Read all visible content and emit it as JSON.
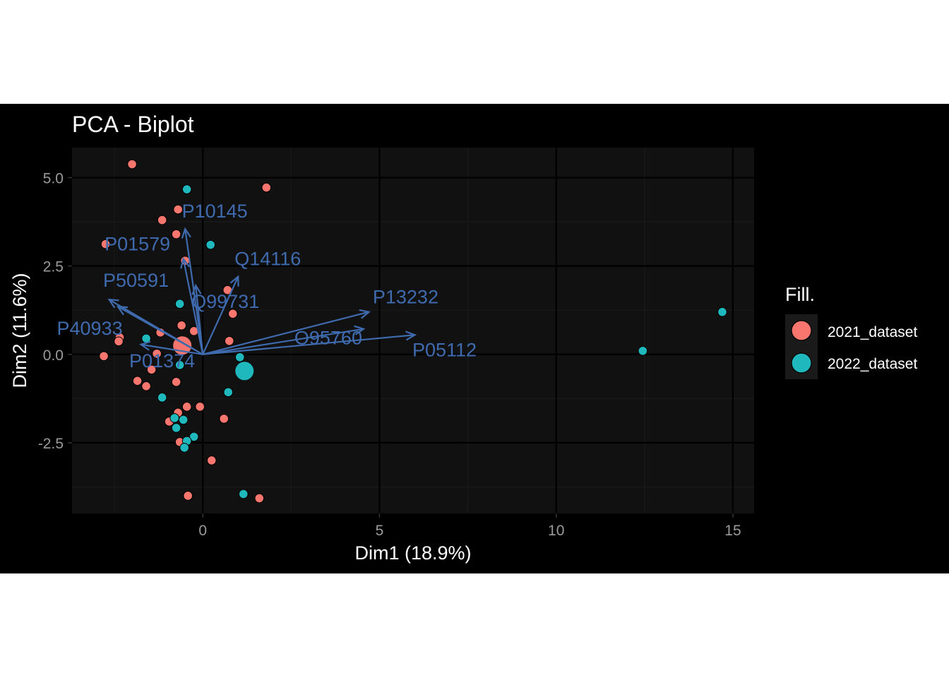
{
  "colors": {
    "page_background": "#ffffff",
    "plot_background_outer": "#000000",
    "panel_background": "#111111",
    "grid_major": "#000000",
    "grid_minor": "#1a1a1a",
    "axis_text": "#9a9a9a",
    "title_text": "#ffffff",
    "variable_arrows": "#3f6bae",
    "group_2021": "#f8766d",
    "group_2022": "#1fb8bd"
  },
  "chart_data": {
    "type": "scatter",
    "title": "PCA - Biplot",
    "xlabel": "Dim1 (18.9%)",
    "ylabel": "Dim2 (11.6%)",
    "xlim": [
      -3.7,
      15.6
    ],
    "ylim": [
      -4.5,
      5.85
    ],
    "x_ticks": [
      0,
      5,
      10,
      15
    ],
    "x_tick_labels": [
      "0",
      "5",
      "10",
      "15"
    ],
    "y_ticks": [
      -2.5,
      0,
      2.5,
      5
    ],
    "y_tick_labels": [
      "-2.5",
      "0.0",
      "2.5",
      "5.0"
    ],
    "grid": true,
    "legend": {
      "title": "Fill.",
      "position": "right",
      "entries": [
        "2021_dataset",
        "2022_dataset"
      ]
    },
    "series": [
      {
        "name": "2021_dataset",
        "color": "#f8766d",
        "points": [
          {
            "x": -2.0,
            "y": 5.38
          },
          {
            "x": 1.8,
            "y": 4.72
          },
          {
            "x": -0.7,
            "y": 4.1
          },
          {
            "x": -1.15,
            "y": 3.8
          },
          {
            "x": -0.75,
            "y": 3.4
          },
          {
            "x": -2.75,
            "y": 3.12
          },
          {
            "x": -0.5,
            "y": 2.65
          },
          {
            "x": 0.7,
            "y": 1.82
          },
          {
            "x": 0.85,
            "y": 1.15
          },
          {
            "x": -0.25,
            "y": 0.66
          },
          {
            "x": -0.6,
            "y": 0.82
          },
          {
            "x": -1.2,
            "y": 0.62
          },
          {
            "x": -2.35,
            "y": 0.48
          },
          {
            "x": -2.38,
            "y": 0.37
          },
          {
            "x": 0.75,
            "y": 0.38
          },
          {
            "x": -1.3,
            "y": 0.02
          },
          {
            "x": -2.8,
            "y": -0.05
          },
          {
            "x": -1.45,
            "y": -0.43
          },
          {
            "x": -1.85,
            "y": -0.75
          },
          {
            "x": -1.6,
            "y": -0.9
          },
          {
            "x": -0.75,
            "y": -0.78
          },
          {
            "x": -0.45,
            "y": -1.48
          },
          {
            "x": -0.08,
            "y": -1.48
          },
          {
            "x": -0.7,
            "y": -1.65
          },
          {
            "x": -0.95,
            "y": -1.9
          },
          {
            "x": 0.6,
            "y": -1.82
          },
          {
            "x": -0.65,
            "y": -2.48
          },
          {
            "x": 0.25,
            "y": -3.0
          },
          {
            "x": -0.42,
            "y": -4.0
          },
          {
            "x": 1.6,
            "y": -4.07
          }
        ],
        "centroid": {
          "x": -0.58,
          "y": 0.25
        }
      },
      {
        "name": "2022_dataset",
        "color": "#1fb8bd",
        "points": [
          {
            "x": -0.45,
            "y": 4.67
          },
          {
            "x": 0.22,
            "y": 3.1
          },
          {
            "x": -0.65,
            "y": 1.43
          },
          {
            "x": -1.6,
            "y": 0.45
          },
          {
            "x": -0.65,
            "y": -0.3
          },
          {
            "x": 1.05,
            "y": -0.08
          },
          {
            "x": 0.72,
            "y": -1.07
          },
          {
            "x": -1.15,
            "y": -1.22
          },
          {
            "x": -0.8,
            "y": -1.8
          },
          {
            "x": -0.75,
            "y": -2.08
          },
          {
            "x": -0.55,
            "y": -1.85
          },
          {
            "x": -0.25,
            "y": -2.33
          },
          {
            "x": -0.45,
            "y": -2.45
          },
          {
            "x": -0.52,
            "y": -2.64
          },
          {
            "x": 1.15,
            "y": -3.95
          },
          {
            "x": 12.45,
            "y": 0.1
          },
          {
            "x": 14.7,
            "y": 1.2
          }
        ],
        "centroid": {
          "x": 1.18,
          "y": -0.47
        }
      }
    ],
    "variables": [
      {
        "name": "P10145",
        "x": -0.5,
        "y": 3.55
      },
      {
        "name": "P01579",
        "x": -0.55,
        "y": 2.7
      },
      {
        "name": "Q14116",
        "x": 1.0,
        "y": 2.2
      },
      {
        "name": "Q99731",
        "x": -0.2,
        "y": 1.95
      },
      {
        "name": "P50591",
        "x": -2.65,
        "y": 1.55
      },
      {
        "name": "P40933",
        "x": -2.4,
        "y": 1.35
      },
      {
        "name": "P13232",
        "x": 4.7,
        "y": 1.2
      },
      {
        "name": "O95760",
        "x": 4.55,
        "y": 0.72
      },
      {
        "name": "P05112",
        "x": 6.0,
        "y": 0.55
      },
      {
        "name": "P01374",
        "x": -1.75,
        "y": 0.28
      }
    ]
  }
}
